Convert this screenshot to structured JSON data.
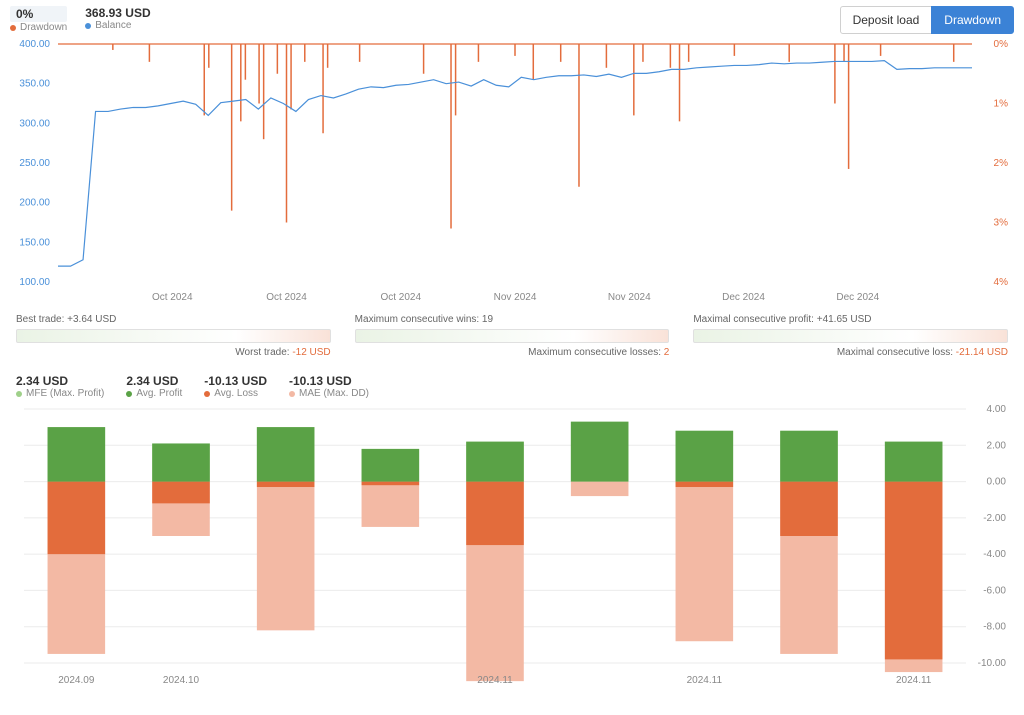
{
  "colors": {
    "blue": "#4a90d9",
    "orange": "#e36c3c",
    "green": "#5aa246",
    "lightgreen": "#9fd08a",
    "lightorange": "#f3b9a4",
    "grid": "#ebebeb",
    "text": "#666666"
  },
  "header": {
    "drawdown_value": "0%",
    "drawdown_label": "Drawdown",
    "balance_value": "368.93 USD",
    "balance_label": "Balance",
    "tab_deposit": "Deposit load",
    "tab_drawdown": "Drawdown"
  },
  "chart1": {
    "type": "line",
    "y_left": {
      "min": 100,
      "max": 400,
      "step": 50,
      "color": "#4a90d9"
    },
    "y_right": {
      "min": 0,
      "max": 4,
      "step": 1,
      "color": "#e36c3c",
      "suffix": "%"
    },
    "x_labels": [
      "Oct 2024",
      "Oct 2024",
      "Oct 2024",
      "Nov 2024",
      "Nov 2024",
      "Dec 2024",
      "Dec 2024"
    ],
    "balance": [
      120,
      120,
      128,
      315,
      315,
      318,
      320,
      320,
      322,
      325,
      328,
      324,
      310,
      326,
      328,
      330,
      318,
      332,
      325,
      315,
      330,
      335,
      332,
      337,
      343,
      346,
      345,
      348,
      349,
      352,
      355,
      350,
      352,
      347,
      355,
      348,
      346,
      358,
      355,
      358,
      360,
      360,
      361,
      359,
      362,
      358,
      363,
      363,
      365,
      368,
      368,
      370,
      371,
      372,
      373,
      373,
      374,
      376,
      375,
      376,
      376,
      377,
      378,
      378,
      378,
      378,
      379,
      368,
      369,
      369,
      370,
      370,
      370,
      370
    ],
    "drawdown_spikes": [
      {
        "x": 0.06,
        "d": 0.1
      },
      {
        "x": 0.1,
        "d": 0.3
      },
      {
        "x": 0.16,
        "d": 1.2
      },
      {
        "x": 0.165,
        "d": 0.4
      },
      {
        "x": 0.19,
        "d": 2.8
      },
      {
        "x": 0.2,
        "d": 1.3
      },
      {
        "x": 0.205,
        "d": 0.6
      },
      {
        "x": 0.22,
        "d": 1.0
      },
      {
        "x": 0.225,
        "d": 1.6
      },
      {
        "x": 0.24,
        "d": 0.5
      },
      {
        "x": 0.25,
        "d": 3.0
      },
      {
        "x": 0.255,
        "d": 1.1
      },
      {
        "x": 0.27,
        "d": 0.3
      },
      {
        "x": 0.29,
        "d": 1.5
      },
      {
        "x": 0.295,
        "d": 0.4
      },
      {
        "x": 0.33,
        "d": 0.3
      },
      {
        "x": 0.4,
        "d": 0.5
      },
      {
        "x": 0.43,
        "d": 3.1
      },
      {
        "x": 0.435,
        "d": 1.2
      },
      {
        "x": 0.46,
        "d": 0.3
      },
      {
        "x": 0.5,
        "d": 0.2
      },
      {
        "x": 0.52,
        "d": 0.6
      },
      {
        "x": 0.55,
        "d": 0.3
      },
      {
        "x": 0.57,
        "d": 2.4
      },
      {
        "x": 0.6,
        "d": 0.4
      },
      {
        "x": 0.63,
        "d": 1.2
      },
      {
        "x": 0.64,
        "d": 0.3
      },
      {
        "x": 0.67,
        "d": 0.4
      },
      {
        "x": 0.68,
        "d": 1.3
      },
      {
        "x": 0.69,
        "d": 0.3
      },
      {
        "x": 0.74,
        "d": 0.2
      },
      {
        "x": 0.8,
        "d": 0.3
      },
      {
        "x": 0.85,
        "d": 1.0
      },
      {
        "x": 0.86,
        "d": 0.3
      },
      {
        "x": 0.865,
        "d": 2.1
      },
      {
        "x": 0.9,
        "d": 0.2
      },
      {
        "x": 0.98,
        "d": 0.3
      }
    ]
  },
  "stat_bars": {
    "a_top": "Best trade: +3.64 USD",
    "a_bot_pre": "Worst trade: ",
    "a_bot_val": "-12 USD",
    "b_top": "Maximum consecutive wins: 19",
    "b_bot_pre": "Maximum consecutive losses: ",
    "b_bot_val": "2",
    "c_top": "Maximal consecutive profit: +41.65 USD",
    "c_bot_pre": "Maximal consecutive loss: ",
    "c_bot_val": "-21.14 USD"
  },
  "chart2_header": {
    "mfe_v": "2.34 USD",
    "mfe_l": "MFE (Max. Profit)",
    "mfe_c": "#9fd08a",
    "avgp_v": "2.34 USD",
    "avgp_l": "Avg. Profit",
    "avgp_c": "#5aa246",
    "avgl_v": "-10.13 USD",
    "avgl_l": "Avg. Loss",
    "avgl_c": "#e36c3c",
    "mae_v": "-10.13 USD",
    "mae_l": "MAE (Max. DD)",
    "mae_c": "#f3b9a4"
  },
  "chart2": {
    "type": "bar",
    "y": {
      "min": -10,
      "max": 4,
      "step": 2
    },
    "x_labels": [
      "2024.09",
      "2024.10",
      "",
      "2024.11",
      "",
      "2024.11",
      ""
    ],
    "bars": [
      {
        "mfe": 3.0,
        "avgp": 3.0,
        "avgl": -4.0,
        "mae": -9.5,
        "x": "2024.09"
      },
      {
        "mfe": 2.1,
        "avgp": 2.1,
        "avgl": -1.2,
        "mae": -3.0,
        "x": "2024.10"
      },
      {
        "mfe": 3.0,
        "avgp": 3.0,
        "avgl": -0.3,
        "mae": -8.2,
        "x": ""
      },
      {
        "mfe": 1.8,
        "avgp": 1.8,
        "avgl": -0.2,
        "mae": -2.5,
        "x": ""
      },
      {
        "mfe": 2.2,
        "avgp": 2.2,
        "avgl": -3.5,
        "mae": -11.0,
        "x": "2024.11"
      },
      {
        "mfe": 3.3,
        "avgp": 3.3,
        "avgl": 0.0,
        "mae": -0.8,
        "x": ""
      },
      {
        "mfe": 2.8,
        "avgp": 2.8,
        "avgl": -0.3,
        "mae": -8.8,
        "x": "2024.11"
      },
      {
        "mfe": 2.8,
        "avgp": 2.8,
        "avgl": -3.0,
        "mae": -9.5,
        "x": ""
      },
      {
        "mfe": 2.2,
        "avgp": 2.2,
        "avgl": -9.8,
        "mae": -10.5,
        "x": "2024.11"
      }
    ],
    "colors": {
      "mfe": "#9fd08a",
      "avgp": "#5aa246",
      "avgl": "#e36c3c",
      "mae": "#f3b9a4"
    }
  }
}
